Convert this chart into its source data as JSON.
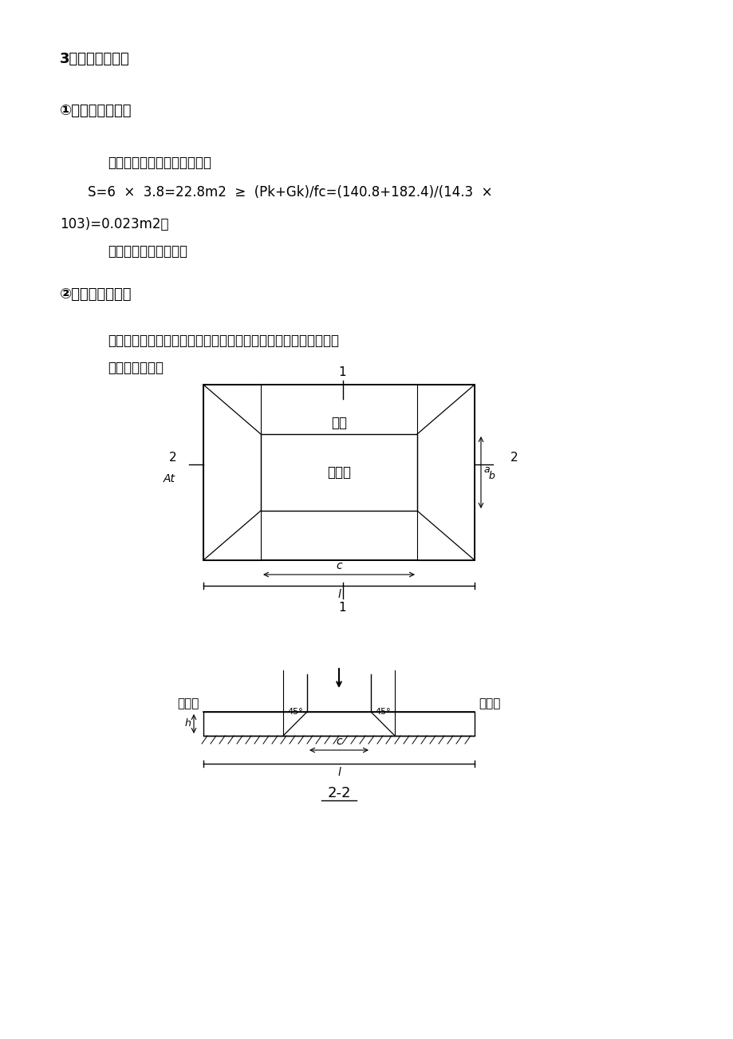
{
  "bg_color": "#ffffff",
  "text_color": "#000000",
  "title1": "3）基础承台验算",
  "title2": "①承台底面积验算",
  "body1": "轴心受压基础基底面积应满足",
  "body2_part1": "S=6  ×  3.8=22.8m2  ≥  (Pk+Gk)/fc=(140.8+182.4)/(14.3  ×",
  "body3": "103)=0.023m2。",
  "body4": "承台底面积满足要求。",
  "title3": "②承台抗冲切验算",
  "body5": "由于导轨架直接与基础相连，故只考虑导轨架对基础的冲切作用。",
  "body6": "计算简图如下："
}
